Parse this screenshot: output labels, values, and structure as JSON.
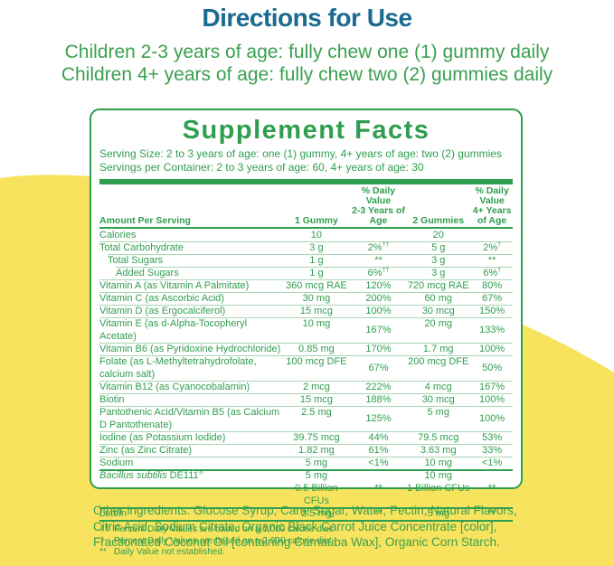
{
  "colors": {
    "heading_blue": "#1b6a90",
    "accent_green": "#2f9e4e",
    "body_green": "#3aa04f",
    "background_yellow": "#f8e35e",
    "panel_white": "#ffffff"
  },
  "directions": {
    "title": "Directions for Use",
    "line1": "Children 2-3 years of age: fully chew one (1) gummy daily",
    "line2": "Children 4+ years of age: fully chew two (2) gummies daily"
  },
  "facts": {
    "title": "Supplement Facts",
    "serving_size": "Serving Size: 2 to 3 years of age: one (1) gummy, 4+ years of age: two (2) gummies",
    "servings_per_container": "Servings per Container: 2 to 3 years of age: 60, 4+ years of age: 30",
    "columns": {
      "amount": "Amount Per Serving",
      "gummy1": "1 Gummy",
      "dv23_line1": "% Daily Value",
      "dv23_line2": "2-3 Years of Age",
      "gummy2": "2 Gummies",
      "dv4_line1": "% Daily Value",
      "dv4_line2": "4+ Years of Age"
    },
    "rows": [
      {
        "name": "Calories",
        "amount1": "10",
        "dv1": "",
        "amount2": "20",
        "dv2": "",
        "indent": 0
      },
      {
        "name": "Total Carbohydrate",
        "amount1": "3 g",
        "dv1": "2%",
        "dv1_sup": "††",
        "amount2": "5 g",
        "dv2": "2%",
        "dv2_sup": "†",
        "indent": 0
      },
      {
        "name": "Total Sugars",
        "amount1": "1 g",
        "dv1": "**",
        "amount2": "3 g",
        "dv2": "**",
        "indent": 1
      },
      {
        "name": "Added Sugars",
        "amount1": "1 g",
        "dv1": "6%",
        "dv1_sup": "††",
        "amount2": "3 g",
        "dv2": "6%",
        "dv2_sup": "†",
        "indent": 2
      },
      {
        "name": "Vitamin A (as Vitamin A Palmitate)",
        "amount1": "360 mcg RAE",
        "dv1": "120%",
        "amount2": "720 mcg RAE",
        "dv2": "80%",
        "indent": 0
      },
      {
        "name": "Vitamin C (as Ascorbic Acid)",
        "amount1": "30 mg",
        "dv1": "200%",
        "amount2": "60 mg",
        "dv2": "67%",
        "indent": 0
      },
      {
        "name": "Vitamin D (as Ergocalciferol)",
        "amount1": "15 mcg",
        "dv1": "100%",
        "amount2": "30 mcg",
        "dv2": "150%",
        "indent": 0
      },
      {
        "name": "Vitamin E (as d-Alpha-Tocopheryl Acetate)",
        "amount1": "10 mg",
        "dv1": "167%",
        "amount2": "20 mg",
        "dv2": "133%",
        "indent": 0
      },
      {
        "name": "Vitamin B6 (as Pyridoxine Hydrochloride)",
        "amount1": "0.85 mg",
        "dv1": "170%",
        "amount2": "1.7 mg",
        "dv2": "100%",
        "indent": 0
      },
      {
        "name": "Folate (as L-Methyltetrahydrofolate, calcium salt)",
        "amount1": "100 mcg DFE",
        "dv1": "67%",
        "amount2": "200 mcg DFE",
        "dv2": "50%",
        "indent": 0
      },
      {
        "name": "Vitamin B12 (as Cyanocobalamin)",
        "amount1": "2 mcg",
        "dv1": "222%",
        "amount2": "4 mcg",
        "dv2": "167%",
        "indent": 0
      },
      {
        "name": "Biotin",
        "amount1": "15 mcg",
        "dv1": "188%",
        "amount2": "30 mcg",
        "dv2": "100%",
        "indent": 0
      },
      {
        "name": "Pantothenic Acid/Vitamin B5 (as Calcium D Pantothenate)",
        "amount1": "2.5 mg",
        "dv1": "125%",
        "amount2": "5 mg",
        "dv2": "100%",
        "indent": 0
      },
      {
        "name": "Iodine (as Potassium Iodide)",
        "amount1": "39.75 mcg",
        "dv1": "44%",
        "amount2": "79.5 mcg",
        "dv2": "53%",
        "indent": 0
      },
      {
        "name": "Zinc (as Zinc Citrate)",
        "amount1": "1.82 mg",
        "dv1": "61%",
        "amount2": "3.63 mg",
        "dv2": "33%",
        "indent": 0
      },
      {
        "name": "Sodium",
        "amount1": "5 mg",
        "dv1": "<1%",
        "amount2": "10 mg",
        "dv2": "<1%",
        "indent": 0
      },
      {
        "name_italic": "Bacillus subtilis",
        "name": " DE111",
        "name_sup": "®",
        "amount1": "5 mg",
        "amount1_sub": "0.5 Billion CFUs",
        "dv1": "**",
        "amount2": "10 mg",
        "amount2_sub": "1 Billion CFUs",
        "dv2": "**",
        "indent": 0,
        "thick_top": true
      },
      {
        "name": "Lutein",
        "amount1": "2.5 mg",
        "dv1": "**",
        "amount2": "5 mg",
        "dv2": "**",
        "indent": 0,
        "thick_top": true
      }
    ],
    "footnotes": [
      {
        "sym": "††",
        "text": "Percent Daily Values are based on a 1,000 calorie diet."
      },
      {
        "sym": "†",
        "text": "Percent Daily Values are based on a 2,000 calorie diet."
      },
      {
        "sym": "**",
        "text": "Daily Value not established."
      }
    ]
  },
  "other_ingredients": "Other ingredients: Glucose Syrup, Cane Sugar, Water, Pectin, Natural Flavors, Citric Acid, Sodium Citrate, Organic Black Carrot Juice Concentrate [color], Fractionated Coconut Oil [containing Carnauba Wax], Organic Corn Starch."
}
